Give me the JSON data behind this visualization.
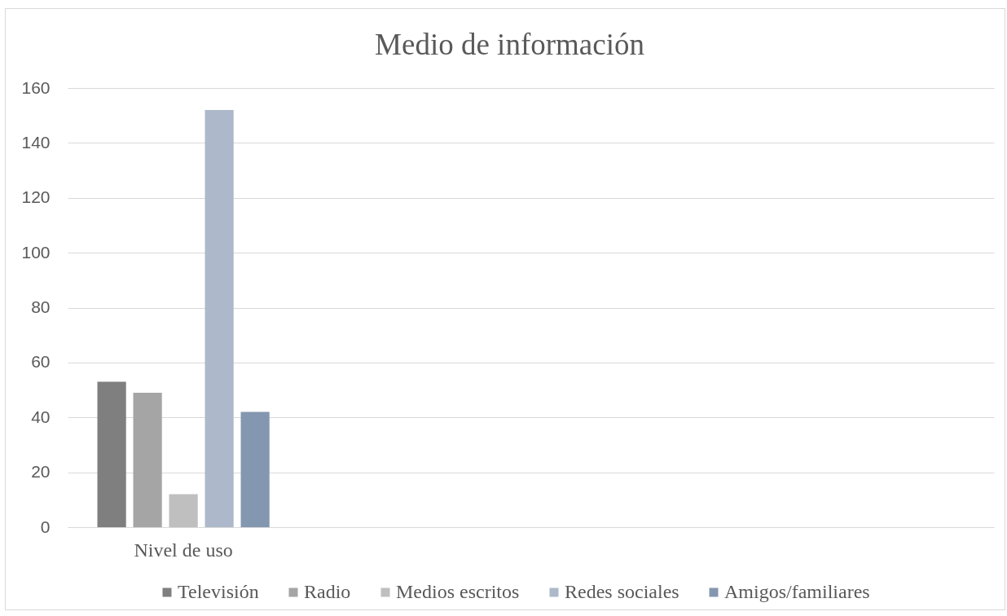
{
  "chart_data": {
    "type": "bar",
    "title": "Medio de información",
    "categories": [
      "Nivel de uso",
      null,
      null,
      null
    ],
    "series": [
      {
        "name": "Televisión",
        "color": "#7f7f7f",
        "values": [
          53,
          null,
          null,
          null
        ]
      },
      {
        "name": "Radio",
        "color": "#a5a5a5",
        "values": [
          49,
          null,
          null,
          null
        ]
      },
      {
        "name": "Medios escritos",
        "color": "#bfbfbf",
        "values": [
          12,
          null,
          null,
          null
        ]
      },
      {
        "name": "Redes sociales",
        "color": "#adb9ca",
        "values": [
          152,
          null,
          null,
          null
        ]
      },
      {
        "name": "Amigos/familiares",
        "color": "#8497b0",
        "values": [
          42,
          null,
          null,
          null
        ]
      }
    ],
    "ylim": [
      0,
      160
    ],
    "yticks": [
      0,
      20,
      40,
      60,
      80,
      100,
      120,
      140,
      160
    ],
    "grid": "y",
    "legend": "bottom"
  }
}
